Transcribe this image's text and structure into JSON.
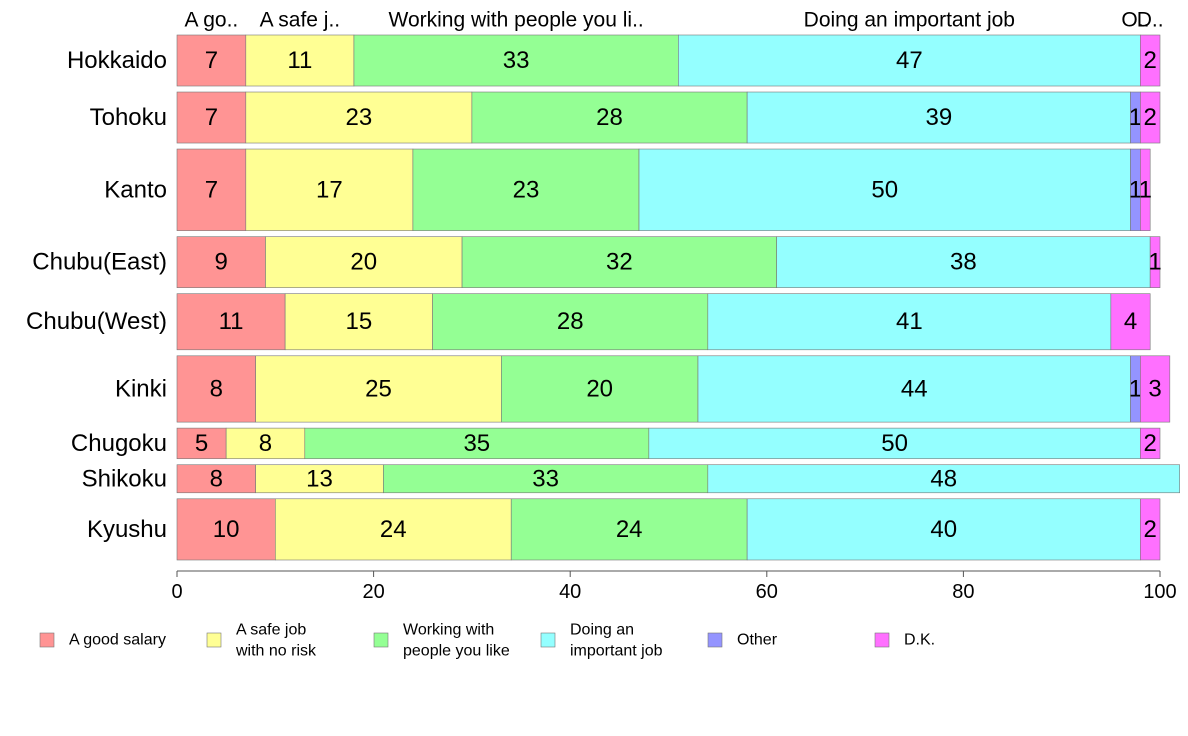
{
  "chart_data": {
    "type": "bar",
    "orientation": "horizontal",
    "stacked": true,
    "title": "",
    "xlabel": "",
    "ylabel": "",
    "xlim": [
      0,
      100
    ],
    "x_ticks": [
      0,
      20,
      40,
      60,
      80,
      100
    ],
    "grid": false,
    "legend_position": "bottom",
    "categories": [
      "Hokkaido",
      "Tohoku",
      "Kanto",
      "Chubu(East)",
      "Chubu(West)",
      "Kinki",
      "Chugoku",
      "Shikoku",
      "Kyushu"
    ],
    "series": [
      {
        "name": "A good salary",
        "legend_lines": [
          "A good salary"
        ],
        "top_label": "A go..",
        "color": "#ff9494",
        "values": [
          7,
          7,
          7,
          9,
          11,
          8,
          5,
          8,
          10
        ]
      },
      {
        "name": "A safe job with no risk",
        "legend_lines": [
          "A safe job",
          "with no risk"
        ],
        "top_label": "A safe j..",
        "color": "#ffff94",
        "values": [
          11,
          23,
          17,
          20,
          15,
          25,
          8,
          13,
          24
        ]
      },
      {
        "name": "Working with people you like",
        "legend_lines": [
          "Working with",
          "people you like"
        ],
        "top_label": "Working with people you li..",
        "color": "#94ff94",
        "values": [
          33,
          28,
          23,
          32,
          28,
          20,
          35,
          33,
          24
        ]
      },
      {
        "name": "Doing an important job",
        "legend_lines": [
          "Doing an",
          "important job"
        ],
        "top_label": "Doing an important job",
        "color": "#94ffff",
        "values": [
          47,
          39,
          50,
          38,
          41,
          44,
          50,
          48,
          40
        ]
      },
      {
        "name": "Other",
        "legend_lines": [
          "Other"
        ],
        "top_label": "O..",
        "color": "#9494ff",
        "values": [
          0,
          1,
          1,
          0,
          0,
          1,
          0,
          0,
          0
        ]
      },
      {
        "name": "D.K.",
        "legend_lines": [
          "D.K."
        ],
        "top_label": "D..",
        "color": "#ff70ff",
        "values": [
          2,
          2,
          1,
          1,
          4,
          3,
          2,
          0,
          2
        ]
      }
    ],
    "row_sample_weights": [
      1.0,
      1.0,
      1.6,
      1.0,
      1.1,
      1.3,
      0.6,
      0.55,
      1.2
    ]
  }
}
